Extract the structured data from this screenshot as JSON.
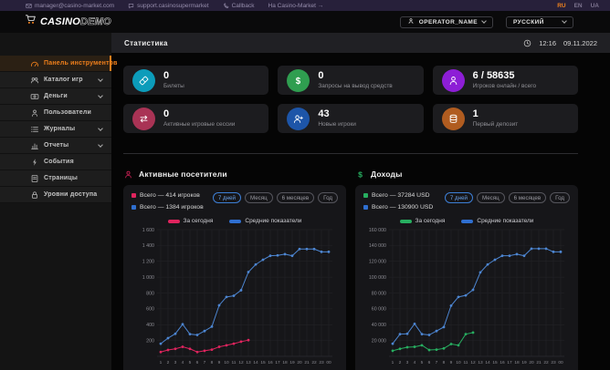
{
  "topbar": {
    "email": "manager@casino-market.com",
    "support": "support.casinosupermarket",
    "callback": "Callback",
    "market_link": "На Casino-Market →",
    "langs": [
      "RU",
      "EN",
      "UA"
    ],
    "active_lang": "RU"
  },
  "appbar": {
    "logo_primary": "CASINO",
    "logo_secondary": "DEMO",
    "operator_name": "OPERATOR_NAME",
    "language_selected": "РУССКИЙ"
  },
  "sidebar": {
    "items": [
      {
        "label": "Панель инструментов",
        "icon": "dashboard-icon",
        "active": true,
        "chevron": false
      },
      {
        "label": "Каталог игр",
        "icon": "games-icon",
        "active": false,
        "chevron": true
      },
      {
        "label": "Деньги",
        "icon": "money-icon",
        "active": false,
        "chevron": true
      },
      {
        "label": "Пользователи",
        "icon": "user-icon",
        "active": false,
        "chevron": false
      },
      {
        "label": "Журналы",
        "icon": "list-icon",
        "active": false,
        "chevron": true
      },
      {
        "label": "Отчеты",
        "icon": "report-icon",
        "active": false,
        "chevron": true
      },
      {
        "label": "События",
        "icon": "events-icon",
        "active": false,
        "chevron": false
      },
      {
        "label": "Страницы",
        "icon": "pages-icon",
        "active": false,
        "chevron": false
      },
      {
        "label": "Уровни доступа",
        "icon": "access-icon",
        "active": false,
        "chevron": false
      }
    ]
  },
  "page": {
    "title": "Статистика",
    "time": "12:16",
    "date": "09.11.2022"
  },
  "stat_cards": [
    {
      "value": "0",
      "label": "Билеты",
      "icon": "ticket-icon",
      "color": "#0c9cba"
    },
    {
      "value": "0",
      "label": "Запросы на вывод средств",
      "icon": "dollar-icon",
      "color": "#2f9e50"
    },
    {
      "value": "6 / 58635",
      "label": "Игроков онлайн / всего",
      "icon": "players-icon",
      "color": "#8d1ed6"
    },
    {
      "value": "0",
      "label": "Активные игровые сессии",
      "icon": "sessions-icon",
      "color": "#a93355"
    },
    {
      "value": "43",
      "label": "Новые игроки",
      "icon": "new-player-icon",
      "color": "#1d55a8"
    },
    {
      "value": "1",
      "label": "Первый депозит",
      "icon": "deposit-icon",
      "color": "#b05c20"
    }
  ],
  "chart_data": [
    {
      "type": "line",
      "title": "Активные посетители",
      "title_icon": "visitors-icon",
      "title_color": "#e0245e",
      "totals": [
        {
          "label": "Всего — 414 игроков",
          "color": "#e0245e"
        },
        {
          "label": "Всего — 1384 игроков",
          "color": "#2f6fd0"
        }
      ],
      "range_buttons": [
        "7 дней",
        "Месяц",
        "6 месяцев",
        "Год"
      ],
      "active_range": "7 дней",
      "series_legend": [
        {
          "label": "За сегодня",
          "color": "#e0245e"
        },
        {
          "label": "Средние показатели",
          "color": "#2f6fd0"
        }
      ],
      "x_labels": [
        "1",
        "2",
        "3",
        "4",
        "5",
        "6",
        "7",
        "8",
        "9",
        "10",
        "11",
        "12",
        "13",
        "14",
        "15",
        "16",
        "17",
        "18",
        "19",
        "20",
        "21",
        "22",
        "23",
        "00"
      ],
      "y_ticks": [
        200,
        400,
        600,
        800,
        1000,
        1200,
        1400,
        1600
      ],
      "y_tick_labels": [
        "200",
        "400",
        "600",
        "800",
        "1 000",
        "1 200",
        "1 400",
        "1 600"
      ],
      "ylim": [
        0,
        1600
      ],
      "grid": true,
      "legend_position": "top-left",
      "series": [
        {
          "name": "Средние показатели",
          "color": "#4d86d2",
          "values": [
            160,
            230,
            285,
            405,
            280,
            270,
            320,
            375,
            645,
            750,
            765,
            835,
            1065,
            1160,
            1220,
            1270,
            1275,
            1290,
            1270,
            1355,
            1355,
            1355,
            1320,
            1320
          ]
        },
        {
          "name": "За сегодня",
          "color": "#e0245e",
          "values": [
            55,
            80,
            95,
            120,
            95,
            55,
            70,
            85,
            120,
            140,
            160,
            185,
            205
          ]
        }
      ]
    },
    {
      "type": "line",
      "title": "Доходы",
      "title_icon": "revenue-dollar-icon",
      "title_color": "#27ae60",
      "totals": [
        {
          "label": "Всего — 37284 USD",
          "color": "#27ae60"
        },
        {
          "label": "Всего — 130900 USD",
          "color": "#2f6fd0"
        }
      ],
      "range_buttons": [
        "7 дней",
        "Месяц",
        "6 месяцев",
        "Год"
      ],
      "active_range": "7 дней",
      "series_legend": [
        {
          "label": "За сегодня",
          "color": "#27ae60"
        },
        {
          "label": "Средние показатели",
          "color": "#2f6fd0"
        }
      ],
      "x_labels": [
        "1",
        "2",
        "3",
        "4",
        "5",
        "6",
        "7",
        "8",
        "9",
        "10",
        "11",
        "12",
        "13",
        "14",
        "15",
        "16",
        "17",
        "18",
        "19",
        "20",
        "21",
        "22",
        "23",
        "00"
      ],
      "y_ticks": [
        20000,
        40000,
        60000,
        80000,
        100000,
        120000,
        140000,
        160000
      ],
      "y_tick_labels": [
        "20 000",
        "40 000",
        "60 000",
        "80 000",
        "100 000",
        "120 000",
        "140 000",
        "160 000"
      ],
      "ylim": [
        0,
        160000
      ],
      "grid": true,
      "legend_position": "top-left",
      "series": [
        {
          "name": "Средние показатели",
          "color": "#4d86d2",
          "values": [
            16000,
            28000,
            28500,
            41000,
            28000,
            27000,
            32000,
            37000,
            64000,
            75000,
            77000,
            84000,
            106000,
            116000,
            122000,
            127000,
            127000,
            129000,
            127000,
            136000,
            136000,
            136000,
            132000,
            132000
          ]
        },
        {
          "name": "За сегодня",
          "color": "#27ae60",
          "values": [
            7000,
            9500,
            11500,
            12000,
            14000,
            8000,
            8500,
            10000,
            15500,
            14000,
            28000,
            30000
          ]
        }
      ]
    }
  ],
  "colors": {
    "accent_orange": "#ef7f1b",
    "pill_active_blue": "#3d7fd6"
  }
}
